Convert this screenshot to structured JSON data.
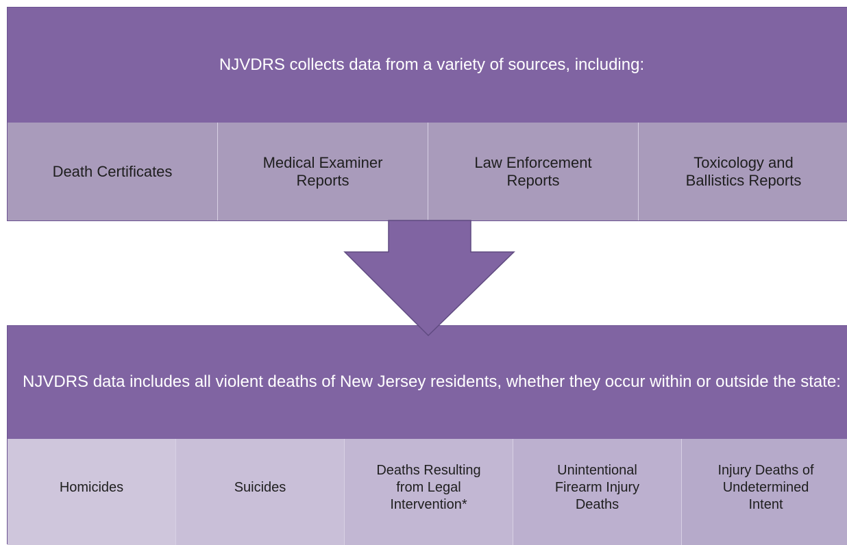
{
  "top": {
    "title": "NJVDRS collects data from a variety of sources, including:",
    "items": [
      "Death Certificates",
      "Medical Examiner Reports",
      "Law Enforcement Reports",
      "Toxicology and Ballistics Reports"
    ]
  },
  "bottom": {
    "title": "NJVDRS data includes all violent deaths of New Jersey residents, whether they occur within or outside the state:",
    "items": [
      "Homicides",
      "Suicides",
      "Deaths Resulting from Legal Intervention*",
      "Unintentional Firearm Injury Deaths",
      "Injury Deaths of Undetermined Intent"
    ]
  }
}
